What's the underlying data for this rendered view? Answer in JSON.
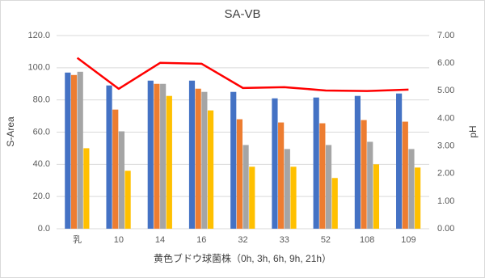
{
  "chart_data": {
    "type": "bar",
    "title": "SA-VB",
    "x_label": "黄色ブドウ球菌株（0h, 3h, 6h, 9h, 21h）",
    "y_label": "S-Area",
    "y2_label": "pH",
    "categories": [
      "乳",
      "10",
      "14",
      "16",
      "32",
      "33",
      "52",
      "108",
      "109"
    ],
    "series": [
      {
        "color": "#4472c4",
        "values": [
          97,
          89,
          92,
          92,
          85,
          81,
          81.5,
          82.5,
          84
        ]
      },
      {
        "color": "#ed7d31",
        "values": [
          95.5,
          74,
          90,
          87,
          68,
          66,
          65.5,
          67.5,
          66.5
        ]
      },
      {
        "color": "#a5a5a5",
        "values": [
          97.5,
          60.5,
          90,
          85,
          52,
          49.5,
          52,
          54,
          49.5
        ]
      },
      {
        "color": "#ffc000",
        "values": [
          50,
          36,
          82.5,
          73.5,
          38.5,
          38.5,
          31.5,
          40,
          38
        ]
      },
      {
        "type": "line",
        "axis": "y2",
        "color": "#ff0000",
        "values": [
          6.19,
          5.07,
          6.01,
          5.98,
          5.1,
          5.13,
          5.01,
          4.99,
          5.04
        ]
      }
    ],
    "ylim": [
      0,
      120
    ],
    "yticks": [
      {
        "value": 0,
        "label": "0.0"
      },
      {
        "value": 20,
        "label": "20.0"
      },
      {
        "value": 40,
        "label": "40.0"
      },
      {
        "value": 60,
        "label": "60.0"
      },
      {
        "value": 80,
        "label": "80.0"
      },
      {
        "value": 100,
        "label": "100.0"
      },
      {
        "value": 120,
        "label": "120.0"
      }
    ],
    "y2lim": [
      0,
      7
    ],
    "y2ticks": [
      {
        "value": 0,
        "label": "0.00"
      },
      {
        "value": 1,
        "label": "1.00"
      },
      {
        "value": 2,
        "label": "2.00"
      },
      {
        "value": 3,
        "label": "3.00"
      },
      {
        "value": 4,
        "label": "4.00"
      },
      {
        "value": 5,
        "label": "5.00"
      },
      {
        "value": 6,
        "label": "6.00"
      },
      {
        "value": 7,
        "label": "7.00"
      }
    ],
    "grid": true
  }
}
